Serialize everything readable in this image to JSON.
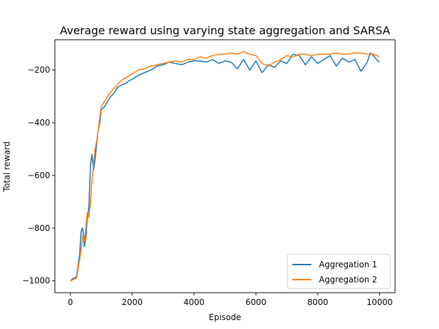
{
  "chart_data": {
    "type": "line",
    "title": "Average reward using varying state aggregation and SARSA",
    "xlabel": "Episode",
    "ylabel": "Total reward",
    "xlim": [
      -500,
      10500
    ],
    "ylim": [
      -1045,
      -85
    ],
    "xticks": [
      0,
      2000,
      4000,
      6000,
      8000,
      10000
    ],
    "xtick_labels": [
      "0",
      "2000",
      "4000",
      "6000",
      "8000",
      "10000"
    ],
    "yticks": [
      -1000,
      -800,
      -600,
      -400,
      -200
    ],
    "ytick_labels": [
      "−1000",
      "−800",
      "−600",
      "−400",
      "−200"
    ],
    "grid": false,
    "legend_position": "lower-right",
    "series": [
      {
        "name": "Aggregation 1",
        "color": "#1f77b4",
        "x": [
          0,
          100,
          200,
          300,
          350,
          400,
          450,
          500,
          550,
          600,
          650,
          700,
          750,
          800,
          850,
          900,
          950,
          1000,
          1100,
          1200,
          1300,
          1400,
          1500,
          1600,
          1700,
          1800,
          1900,
          2000,
          2200,
          2400,
          2600,
          2800,
          3000,
          3200,
          3400,
          3600,
          3800,
          4000,
          4200,
          4400,
          4600,
          4800,
          5000,
          5200,
          5400,
          5600,
          5800,
          6000,
          6200,
          6400,
          6600,
          6800,
          7000,
          7200,
          7400,
          7600,
          7800,
          8000,
          8200,
          8400,
          8600,
          8800,
          9000,
          9200,
          9400,
          9600,
          9700,
          9800,
          9900,
          10000
        ],
        "y": [
          -1000,
          -990,
          -985,
          -900,
          -810,
          -800,
          -870,
          -840,
          -760,
          -720,
          -560,
          -520,
          -580,
          -540,
          -480,
          -430,
          -400,
          -350,
          -340,
          -320,
          -300,
          -290,
          -270,
          -260,
          -255,
          -250,
          -240,
          -235,
          -220,
          -210,
          -200,
          -185,
          -180,
          -170,
          -175,
          -180,
          -170,
          -165,
          -165,
          -170,
          -160,
          -175,
          -165,
          -170,
          -195,
          -160,
          -200,
          -165,
          -210,
          -180,
          -190,
          -165,
          -175,
          -140,
          -145,
          -180,
          -150,
          -175,
          -160,
          -145,
          -185,
          -155,
          -170,
          -160,
          -205,
          -170,
          -135,
          -145,
          -160,
          -170
        ]
      },
      {
        "name": "Aggregation 2",
        "color": "#ff7f0e",
        "x": [
          0,
          100,
          200,
          300,
          350,
          400,
          450,
          500,
          550,
          600,
          650,
          700,
          750,
          800,
          850,
          900,
          950,
          1000,
          1100,
          1200,
          1300,
          1400,
          1500,
          1600,
          1700,
          1800,
          1900,
          2000,
          2200,
          2400,
          2600,
          2800,
          3000,
          3200,
          3400,
          3600,
          3800,
          4000,
          4200,
          4400,
          4600,
          4800,
          5000,
          5200,
          5400,
          5600,
          5800,
          6000,
          6200,
          6400,
          6600,
          6800,
          7000,
          7200,
          7400,
          7600,
          7800,
          8000,
          8200,
          8400,
          8600,
          8800,
          9000,
          9200,
          9400,
          9600,
          9800,
          10000
        ],
        "y": [
          -1000,
          -995,
          -990,
          -920,
          -880,
          -830,
          -850,
          -800,
          -740,
          -760,
          -700,
          -620,
          -560,
          -500,
          -470,
          -430,
          -380,
          -340,
          -320,
          -300,
          -285,
          -270,
          -260,
          -245,
          -235,
          -230,
          -220,
          -215,
          -200,
          -195,
          -185,
          -180,
          -175,
          -170,
          -165,
          -170,
          -160,
          -160,
          -150,
          -155,
          -145,
          -140,
          -140,
          -135,
          -140,
          -130,
          -140,
          -145,
          -175,
          -185,
          -170,
          -160,
          -145,
          -150,
          -140,
          -140,
          -145,
          -140,
          -140,
          -140,
          -135,
          -140,
          -140,
          -135,
          -135,
          -140,
          -140,
          -150
        ]
      }
    ]
  }
}
